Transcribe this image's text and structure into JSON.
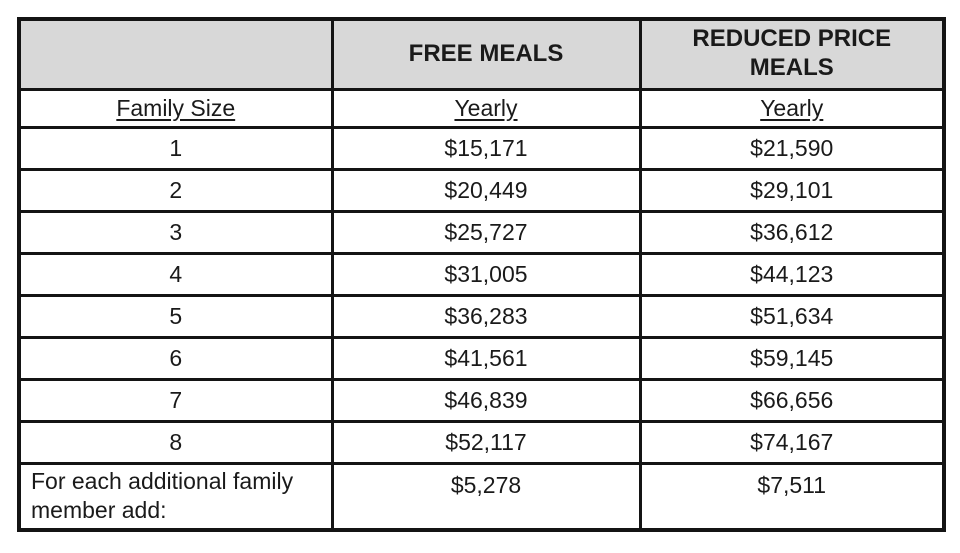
{
  "table": {
    "columns": {
      "header": [
        "",
        "FREE MEALS",
        "REDUCED PRICE MEALS"
      ],
      "subheader": [
        "Family Size",
        "Yearly",
        "Yearly"
      ]
    },
    "rows": [
      {
        "size": "1",
        "free_yearly": "$15,171",
        "reduced_yearly": "$21,590"
      },
      {
        "size": "2",
        "free_yearly": "$20,449",
        "reduced_yearly": "$29,101"
      },
      {
        "size": "3",
        "free_yearly": "$25,727",
        "reduced_yearly": "$36,612"
      },
      {
        "size": "4",
        "free_yearly": "$31,005",
        "reduced_yearly": "$44,123"
      },
      {
        "size": "5",
        "free_yearly": "$36,283",
        "reduced_yearly": "$51,634"
      },
      {
        "size": "6",
        "free_yearly": "$41,561",
        "reduced_yearly": "$59,145"
      },
      {
        "size": "7",
        "free_yearly": "$46,839",
        "reduced_yearly": "$66,656"
      },
      {
        "size": "8",
        "free_yearly": "$52,117",
        "reduced_yearly": "$74,167"
      }
    ],
    "footer": {
      "label": "For each additional family member add:",
      "free_yearly": "$5,278",
      "reduced_yearly": "$7,511"
    },
    "colors": {
      "header_bg": "#d8d8d8",
      "border": "#141414",
      "text": "#1a1a1a",
      "page_bg": "#ffffff"
    }
  }
}
